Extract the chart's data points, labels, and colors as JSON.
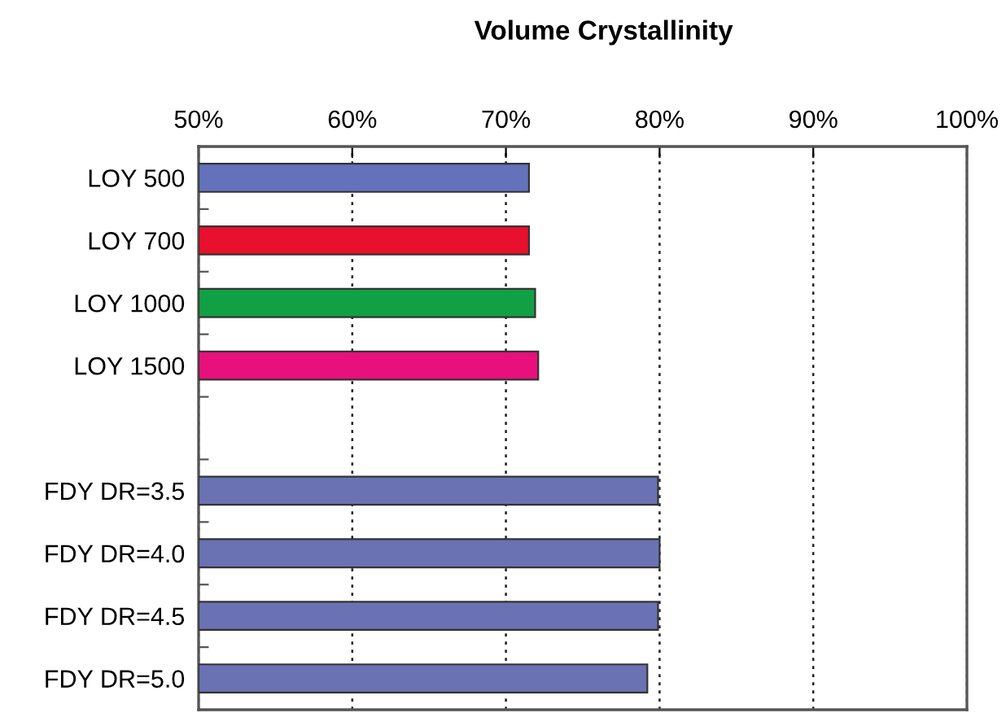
{
  "chart_data": {
    "type": "bar",
    "orientation": "horizontal",
    "title": "Volume Crystallinity",
    "categories": [
      "LOY 500",
      "LOY 700",
      "LOY 1000",
      "LOY 1500",
      null,
      "FDY DR=3.5",
      "FDY DR=4.0",
      "FDY DR=4.5",
      "FDY DR=5.0"
    ],
    "values": [
      71.5,
      71.5,
      71.9,
      72.1,
      null,
      79.9,
      80.0,
      79.9,
      79.2
    ],
    "colors": [
      "#6472bc",
      "#e8102c",
      "#12a044",
      "#e8107c",
      "#6472bc",
      "#6a72b4",
      "#6a72b4",
      "#6a72b4",
      "#6a72b4"
    ],
    "xlim": [
      50,
      100
    ],
    "xticks": [
      {
        "value": 50,
        "label": "50%"
      },
      {
        "value": 60,
        "label": "60%"
      },
      {
        "value": 70,
        "label": "70%"
      },
      {
        "value": 80,
        "label": "80%"
      },
      {
        "value": 90,
        "label": "90%"
      },
      {
        "value": 100,
        "label": "100%"
      }
    ],
    "grid": "x"
  }
}
